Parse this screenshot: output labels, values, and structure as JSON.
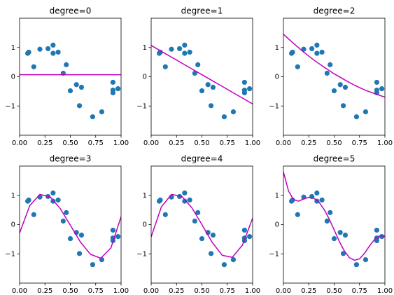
{
  "chart_data": [
    {
      "type": "scatter",
      "title": "degree=0",
      "scatter": {
        "color": "#1f77b4",
        "x": [
          0.08,
          0.09,
          0.14,
          0.2,
          0.28,
          0.33,
          0.33,
          0.38,
          0.43,
          0.46,
          0.5,
          0.56,
          0.59,
          0.61,
          0.72,
          0.81,
          0.92,
          0.92,
          0.92,
          0.97
        ],
        "y": [
          0.8,
          0.84,
          0.34,
          0.94,
          0.96,
          1.08,
          0.8,
          0.84,
          0.12,
          0.41,
          -0.48,
          -0.27,
          -0.99,
          -0.36,
          -1.37,
          -1.2,
          -0.19,
          -0.55,
          -0.46,
          -0.41
        ]
      },
      "line": {
        "color": "#bf00bf",
        "x": [
          0,
          1
        ],
        "values": [
          0.07,
          0.07
        ]
      },
      "xlim": [
        0,
        1
      ],
      "ylim": [
        -2,
        2
      ],
      "xticks": [
        {
          "value": 0,
          "label": "0.00"
        },
        {
          "value": 0.25,
          "label": "0.25"
        },
        {
          "value": 0.5,
          "label": "0.50"
        },
        {
          "value": 0.75,
          "label": "0.75"
        },
        {
          "value": 1,
          "label": "1.00"
        }
      ],
      "yticks": [
        {
          "value": -1,
          "label": "−1"
        },
        0,
        1
      ]
    },
    {
      "type": "scatter",
      "title": "degree=1",
      "scatter": {
        "color": "#1f77b4",
        "x": [
          0.08,
          0.09,
          0.14,
          0.2,
          0.28,
          0.33,
          0.33,
          0.38,
          0.43,
          0.46,
          0.5,
          0.56,
          0.59,
          0.61,
          0.72,
          0.81,
          0.92,
          0.92,
          0.92,
          0.97
        ],
        "y": [
          0.8,
          0.84,
          0.34,
          0.94,
          0.96,
          1.08,
          0.8,
          0.84,
          0.12,
          0.41,
          -0.48,
          -0.27,
          -0.99,
          -0.36,
          -1.37,
          -1.2,
          -0.19,
          -0.55,
          -0.46,
          -0.41
        ]
      },
      "line": {
        "color": "#bf00bf",
        "x": [
          0,
          0.1,
          0.2,
          0.3,
          0.4,
          0.5,
          0.6,
          0.7,
          0.8,
          0.9,
          1
        ],
        "values": [
          1.07,
          0.87,
          0.67,
          0.47,
          0.27,
          0.07,
          -0.13,
          -0.33,
          -0.53,
          -0.73,
          -0.93
        ]
      },
      "xlim": [
        0,
        1
      ],
      "ylim": [
        -2,
        2
      ],
      "xticks": [
        {
          "value": 0,
          "label": "0.00"
        },
        {
          "value": 0.25,
          "label": "0.25"
        },
        {
          "value": 0.5,
          "label": "0.50"
        },
        {
          "value": 0.75,
          "label": "0.75"
        },
        {
          "value": 1,
          "label": "1.00"
        }
      ],
      "yticks": [
        {
          "value": -1,
          "label": "−1"
        },
        0,
        1
      ]
    },
    {
      "type": "scatter",
      "title": "degree=2",
      "scatter": {
        "color": "#1f77b4",
        "x": [
          0.08,
          0.09,
          0.14,
          0.2,
          0.28,
          0.33,
          0.33,
          0.38,
          0.43,
          0.46,
          0.5,
          0.56,
          0.59,
          0.61,
          0.72,
          0.81,
          0.92,
          0.92,
          0.92,
          0.97
        ],
        "y": [
          0.8,
          0.84,
          0.34,
          0.94,
          0.96,
          1.08,
          0.8,
          0.84,
          0.12,
          0.41,
          -0.48,
          -0.27,
          -0.99,
          -0.36,
          -1.37,
          -1.2,
          -0.19,
          -0.55,
          -0.46,
          -0.41
        ]
      },
      "line": {
        "color": "#bf00bf",
        "x": [
          0,
          0.1,
          0.2,
          0.3,
          0.4,
          0.5,
          0.6,
          0.7,
          0.8,
          0.9,
          1
        ],
        "values": [
          1.45,
          1.14,
          0.84,
          0.57,
          0.33,
          0.1,
          -0.1,
          -0.29,
          -0.45,
          -0.58,
          -0.7
        ]
      },
      "xlim": [
        0,
        1
      ],
      "ylim": [
        -2,
        2
      ],
      "xticks": [
        {
          "value": 0,
          "label": "0.00"
        },
        {
          "value": 0.25,
          "label": "0.25"
        },
        {
          "value": 0.5,
          "label": "0.50"
        },
        {
          "value": 0.75,
          "label": "0.75"
        },
        {
          "value": 1,
          "label": "1.00"
        }
      ],
      "yticks": [
        {
          "value": -1,
          "label": "−1"
        },
        0,
        1
      ]
    },
    {
      "type": "scatter",
      "title": "degree=3",
      "scatter": {
        "color": "#1f77b4",
        "x": [
          0.08,
          0.09,
          0.14,
          0.2,
          0.28,
          0.33,
          0.33,
          0.38,
          0.43,
          0.46,
          0.5,
          0.56,
          0.59,
          0.61,
          0.72,
          0.81,
          0.92,
          0.92,
          0.92,
          0.97
        ],
        "y": [
          0.8,
          0.84,
          0.34,
          0.94,
          0.96,
          1.08,
          0.8,
          0.84,
          0.12,
          0.41,
          -0.48,
          -0.27,
          -0.99,
          -0.36,
          -1.37,
          -1.2,
          -0.19,
          -0.55,
          -0.46,
          -0.41
        ]
      },
      "line": {
        "color": "#bf00bf",
        "x": [
          0,
          0.1,
          0.2,
          0.3,
          0.4,
          0.5,
          0.6,
          0.7,
          0.8,
          0.9,
          1
        ],
        "values": [
          -0.29,
          0.65,
          1.03,
          0.95,
          0.55,
          -0.02,
          -0.6,
          -1.02,
          -1.15,
          -0.8,
          0.27
        ]
      },
      "xlim": [
        0,
        1
      ],
      "ylim": [
        -2,
        2
      ],
      "xticks": [
        {
          "value": 0,
          "label": "0.00"
        },
        {
          "value": 0.25,
          "label": "0.25"
        },
        {
          "value": 0.5,
          "label": "0.50"
        },
        {
          "value": 0.75,
          "label": "0.75"
        },
        {
          "value": 1,
          "label": "1.00"
        }
      ],
      "yticks": [
        {
          "value": -1,
          "label": "−1"
        },
        0,
        1
      ]
    },
    {
      "type": "scatter",
      "title": "degree=4",
      "scatter": {
        "color": "#1f77b4",
        "x": [
          0.08,
          0.09,
          0.14,
          0.2,
          0.28,
          0.33,
          0.33,
          0.38,
          0.43,
          0.46,
          0.5,
          0.56,
          0.59,
          0.61,
          0.72,
          0.81,
          0.92,
          0.92,
          0.92,
          0.97
        ],
        "y": [
          0.8,
          0.84,
          0.34,
          0.94,
          0.96,
          1.08,
          0.8,
          0.84,
          0.12,
          0.41,
          -0.48,
          -0.27,
          -0.99,
          -0.36,
          -1.37,
          -1.2,
          -0.19,
          -0.55,
          -0.46,
          -0.41
        ]
      },
      "line": {
        "color": "#bf00bf",
        "x": [
          0,
          0.1,
          0.2,
          0.3,
          0.4,
          0.5,
          0.6,
          0.7,
          0.8,
          0.9,
          1
        ],
        "values": [
          -0.42,
          0.6,
          1.03,
          0.97,
          0.58,
          0.0,
          -0.6,
          -1.05,
          -1.12,
          -0.7,
          0.22
        ]
      },
      "xlim": [
        0,
        1
      ],
      "ylim": [
        -2,
        2
      ],
      "xticks": [
        {
          "value": 0,
          "label": "0.00"
        },
        {
          "value": 0.25,
          "label": "0.25"
        },
        {
          "value": 0.5,
          "label": "0.50"
        },
        {
          "value": 0.75,
          "label": "0.75"
        },
        {
          "value": 1,
          "label": "1.00"
        }
      ],
      "yticks": [
        {
          "value": -1,
          "label": "−1"
        },
        0,
        1
      ]
    },
    {
      "type": "scatter",
      "title": "degree=5",
      "scatter": {
        "color": "#1f77b4",
        "x": [
          0.08,
          0.09,
          0.14,
          0.2,
          0.28,
          0.33,
          0.33,
          0.38,
          0.43,
          0.46,
          0.5,
          0.56,
          0.59,
          0.61,
          0.72,
          0.81,
          0.92,
          0.92,
          0.92,
          0.97
        ],
        "y": [
          0.8,
          0.84,
          0.34,
          0.94,
          0.96,
          1.08,
          0.8,
          0.84,
          0.12,
          0.41,
          -0.48,
          -0.27,
          -0.99,
          -0.36,
          -1.37,
          -1.2,
          -0.19,
          -0.55,
          -0.46,
          -0.41
        ]
      },
      "line": {
        "color": "#bf00bf",
        "x": [
          0,
          0.05,
          0.1,
          0.15,
          0.2,
          0.25,
          0.3,
          0.35,
          0.4,
          0.45,
          0.5,
          0.55,
          0.6,
          0.65,
          0.7,
          0.75,
          0.8,
          0.85,
          0.9,
          0.95,
          1
        ],
        "values": [
          1.8,
          1.15,
          0.85,
          0.8,
          0.88,
          0.93,
          0.9,
          0.77,
          0.52,
          0.2,
          -0.18,
          -0.57,
          -0.9,
          -1.13,
          -1.22,
          -1.17,
          -0.98,
          -0.72,
          -0.5,
          -0.38,
          -0.4
        ]
      },
      "xlim": [
        0,
        1
      ],
      "ylim": [
        -2,
        2
      ],
      "xticks": [
        {
          "value": 0,
          "label": "0.00"
        },
        {
          "value": 0.25,
          "label": "0.25"
        },
        {
          "value": 0.5,
          "label": "0.50"
        },
        {
          "value": 0.75,
          "label": "0.75"
        },
        {
          "value": 1,
          "label": "1.00"
        }
      ],
      "yticks": [
        {
          "value": -1,
          "label": "−1"
        },
        0,
        1
      ]
    }
  ]
}
